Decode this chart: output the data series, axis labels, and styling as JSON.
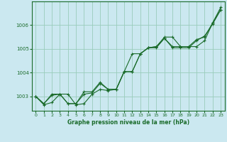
{
  "xlabel": "Graphe pression niveau de la mer (hPa)",
  "background_color": "#cbe8f0",
  "plot_bg_color": "#cbe8f0",
  "grid_color": "#99ccbb",
  "line_color": "#1a6b2a",
  "xlim": [
    -0.5,
    23.5
  ],
  "ylim": [
    1002.4,
    1007.0
  ],
  "yticks": [
    1003,
    1004,
    1005,
    1006
  ],
  "xticks": [
    0,
    1,
    2,
    3,
    4,
    5,
    6,
    7,
    8,
    9,
    10,
    11,
    12,
    13,
    14,
    15,
    16,
    17,
    18,
    19,
    20,
    21,
    22,
    23
  ],
  "series": [
    [
      1003.0,
      1002.65,
      1002.75,
      1003.1,
      1003.1,
      1002.65,
      1002.7,
      1003.1,
      1003.3,
      1003.25,
      1003.3,
      1004.05,
      1004.05,
      1004.8,
      1005.05,
      1005.05,
      1005.45,
      1005.05,
      1005.05,
      1005.05,
      1005.35,
      1005.55,
      1006.05,
      1006.65
    ],
    [
      1003.0,
      1002.7,
      1003.05,
      1003.1,
      1002.7,
      1002.7,
      1003.1,
      1003.15,
      1003.55,
      1003.3,
      1003.3,
      1004.05,
      1004.05,
      1004.8,
      1005.05,
      1005.1,
      1005.45,
      1005.1,
      1005.1,
      1005.1,
      1005.1,
      1005.35,
      1006.1,
      1006.65
    ],
    [
      1003.0,
      1002.7,
      1003.1,
      1003.1,
      1002.7,
      1002.7,
      1003.2,
      1003.2,
      1003.6,
      1003.3,
      1003.3,
      1004.05,
      1004.8,
      1004.8,
      1005.05,
      1005.1,
      1005.5,
      1005.5,
      1005.1,
      1005.1,
      1005.4,
      1005.5,
      1006.1,
      1006.75
    ]
  ]
}
